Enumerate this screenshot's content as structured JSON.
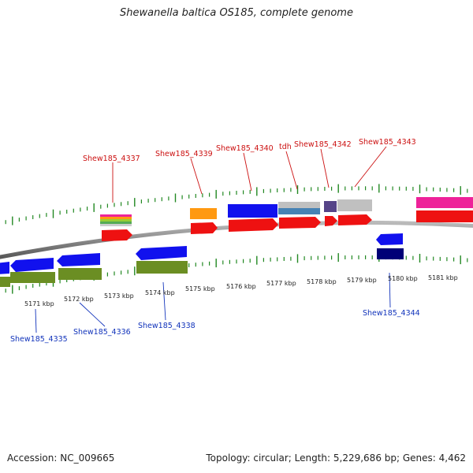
{
  "title": "Shewanella baltica OS185, complete genome",
  "footer": {
    "accession": "Accession: NC_009665",
    "summary": "Topology: circular; Length: 5,229,686 bp; Genes: 4,462"
  },
  "genes_top": [
    {
      "label": "Shew185_4337"
    },
    {
      "label": "Shew185_4339"
    },
    {
      "label": "Shew185_4340"
    },
    {
      "label": "tdh"
    },
    {
      "label": "Shew185_4342"
    },
    {
      "label": "Shew185_4343"
    }
  ],
  "genes_bottom": [
    {
      "label": "Shew185_4335"
    },
    {
      "label": "Shew185_4336"
    },
    {
      "label": "Shew185_4338"
    },
    {
      "label": "Shew185_4344"
    }
  ],
  "scale_labels": [
    "5171 kbp",
    "5172 kbp",
    "5173 kbp",
    "5174 kbp",
    "5175 kbp",
    "5176 kbp",
    "5177 kbp",
    "5178 kbp",
    "5179 kbp",
    "5180 kbp",
    "5181 kbp"
  ],
  "colors": {
    "label_forward": "#cc1111",
    "label_reverse": "#1133bb",
    "tick": "#228822",
    "cds_red": "#ee1111",
    "cds_blue": "#1111ee",
    "rna_olive": "#6b8e23",
    "orange": "#ff9911",
    "pink": "#ee2299",
    "steelblue": "#4682b4",
    "navy": "#000077",
    "slate": "#554488",
    "grey": "#c0c0c0"
  }
}
